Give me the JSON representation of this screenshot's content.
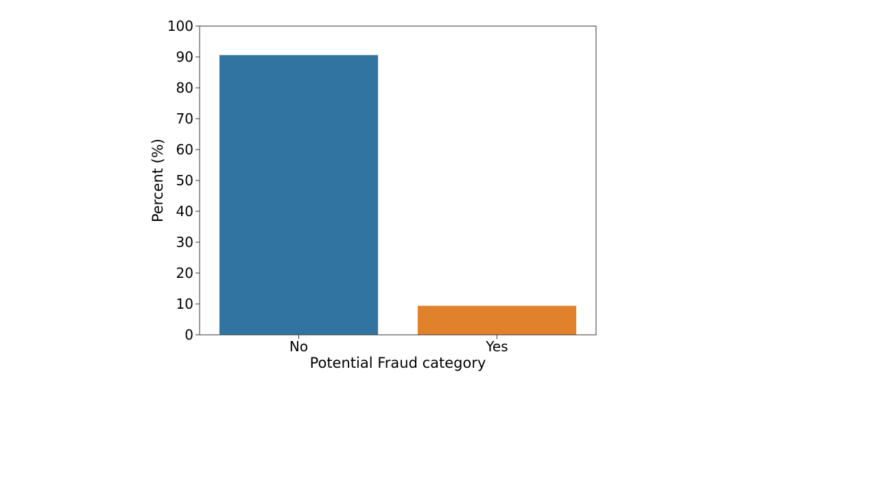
{
  "chart_data": {
    "type": "bar",
    "title": "",
    "xlabel": "Potential Fraud category",
    "ylabel": "Percent (%)",
    "categories": [
      "No",
      "Yes"
    ],
    "values": [
      90.6,
      9.4
    ],
    "colors": [
      "#3274a1",
      "#e1812c"
    ],
    "ylim": [
      0,
      100
    ],
    "yticks": [
      0,
      10,
      20,
      30,
      40,
      50,
      60,
      70,
      80,
      90,
      100
    ],
    "grid": false,
    "legend": "none"
  }
}
